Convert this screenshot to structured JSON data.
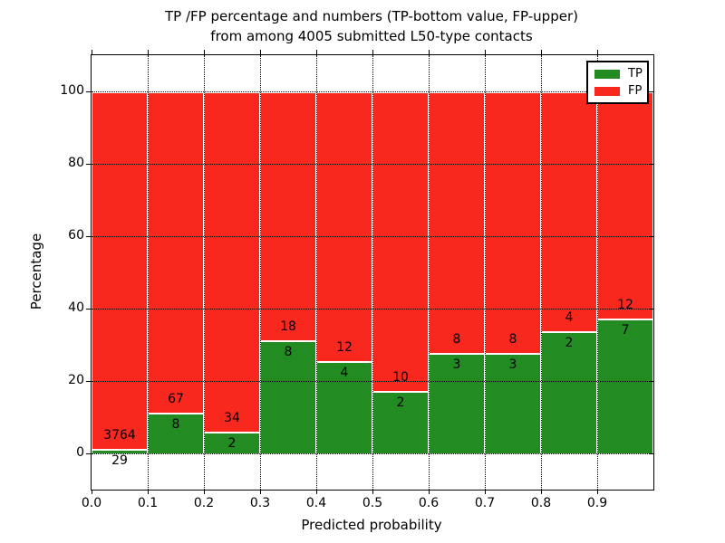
{
  "chart_data": {
    "type": "bar",
    "stacked": true,
    "normalized_to_percent": true,
    "title_line1": "TP /FP percentage and numbers (TP-bottom value, FP-upper)",
    "title_line2": "from among 4005 submitted L50-type contacts",
    "xlabel": "Predicted probability",
    "ylabel": "Percentage",
    "total_contacts": 4005,
    "xlim": [
      0.0,
      1.0
    ],
    "ylim": [
      -10,
      110
    ],
    "grid": "dotted",
    "xticks": [
      "0.0",
      "0.1",
      "0.2",
      "0.3",
      "0.4",
      "0.5",
      "0.6",
      "0.7",
      "0.8",
      "0.9"
    ],
    "yticks": [
      0,
      20,
      40,
      60,
      80,
      100
    ],
    "bin_width": 0.1,
    "legend": {
      "position": "upper right",
      "entries": [
        {
          "label": "TP",
          "color": "#228b22"
        },
        {
          "label": "FP",
          "color": "#f8281e"
        }
      ]
    },
    "series": [
      {
        "name": "TP",
        "color": "#228b22",
        "counts": [
          29,
          8,
          2,
          8,
          4,
          2,
          3,
          3,
          2,
          7
        ]
      },
      {
        "name": "FP",
        "color": "#f8281e",
        "counts": [
          3764,
          67,
          34,
          18,
          12,
          10,
          8,
          8,
          4,
          12
        ]
      }
    ],
    "tp_percent": [
      0.76,
      10.67,
      5.56,
      30.77,
      25.0,
      16.67,
      27.27,
      27.27,
      33.33,
      36.84
    ],
    "bar_total_percent": 100
  }
}
